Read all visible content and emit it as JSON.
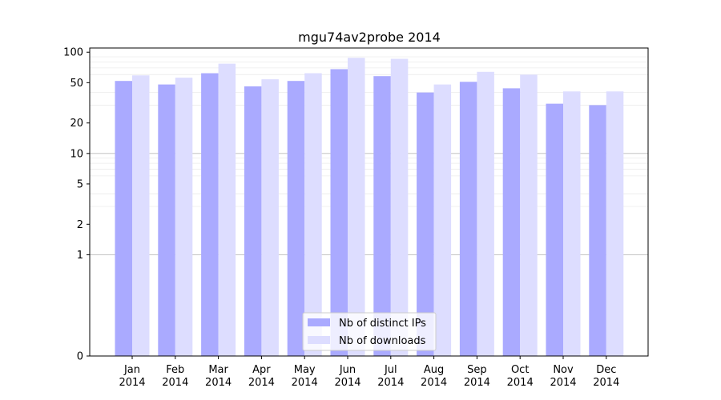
{
  "chart_data": {
    "type": "bar",
    "title": "mgu74av2probe 2014",
    "xlabel": "",
    "ylabel": "",
    "yscale": "symlog",
    "ylim": [
      0,
      110
    ],
    "yticks": [
      0,
      1,
      2,
      5,
      10,
      20,
      50,
      100
    ],
    "categories": [
      "Jan\n2014",
      "Feb\n2014",
      "Mar\n2014",
      "Apr\n2014",
      "May\n2014",
      "Jun\n2014",
      "Jul\n2014",
      "Aug\n2014",
      "Sep\n2014",
      "Oct\n2014",
      "Nov\n2014",
      "Dec\n2014"
    ],
    "series": [
      {
        "name": "Nb of distinct IPs",
        "color": "#aaaaff",
        "values": [
          52,
          48,
          62,
          46,
          52,
          68,
          58,
          40,
          51,
          44,
          31,
          30
        ]
      },
      {
        "name": "Nb of downloads",
        "color": "#ddddff",
        "values": [
          59,
          56,
          77,
          54,
          62,
          88,
          86,
          48,
          64,
          60,
          41,
          41
        ]
      }
    ],
    "legend_position": "bottom-center",
    "grid": "y-major-and-minor"
  }
}
